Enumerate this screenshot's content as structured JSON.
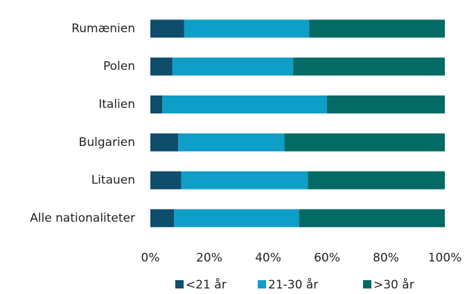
{
  "chart_data": {
    "type": "stacked_barh",
    "categories": [
      "Rumænien",
      "Polen",
      "Italien",
      "Bulgarien",
      "Litauen",
      "Alle nationaliteter"
    ],
    "series": [
      {
        "name": "<21 år",
        "color": "#0e4d6b",
        "values": [
          11.5,
          7.5,
          4,
          9.5,
          10.5,
          8
        ]
      },
      {
        "name": "21-30 år",
        "color": "#0f9ec8",
        "values": [
          42.5,
          41,
          56,
          36,
          43,
          42.5
        ]
      },
      {
        "name": ">30 år",
        "color": "#036b63",
        "values": [
          46,
          51.5,
          40,
          54.5,
          46.5,
          49.5
        ]
      }
    ],
    "xlim": [
      0,
      100
    ],
    "xticks": [
      {
        "value": 0,
        "label": "0%"
      },
      {
        "value": 20,
        "label": "20%"
      },
      {
        "value": 40,
        "label": "40%"
      },
      {
        "value": 60,
        "label": "60%"
      },
      {
        "value": 80,
        "label": "80%"
      },
      {
        "value": 100,
        "label": "100%"
      }
    ],
    "legend": "bottom"
  }
}
